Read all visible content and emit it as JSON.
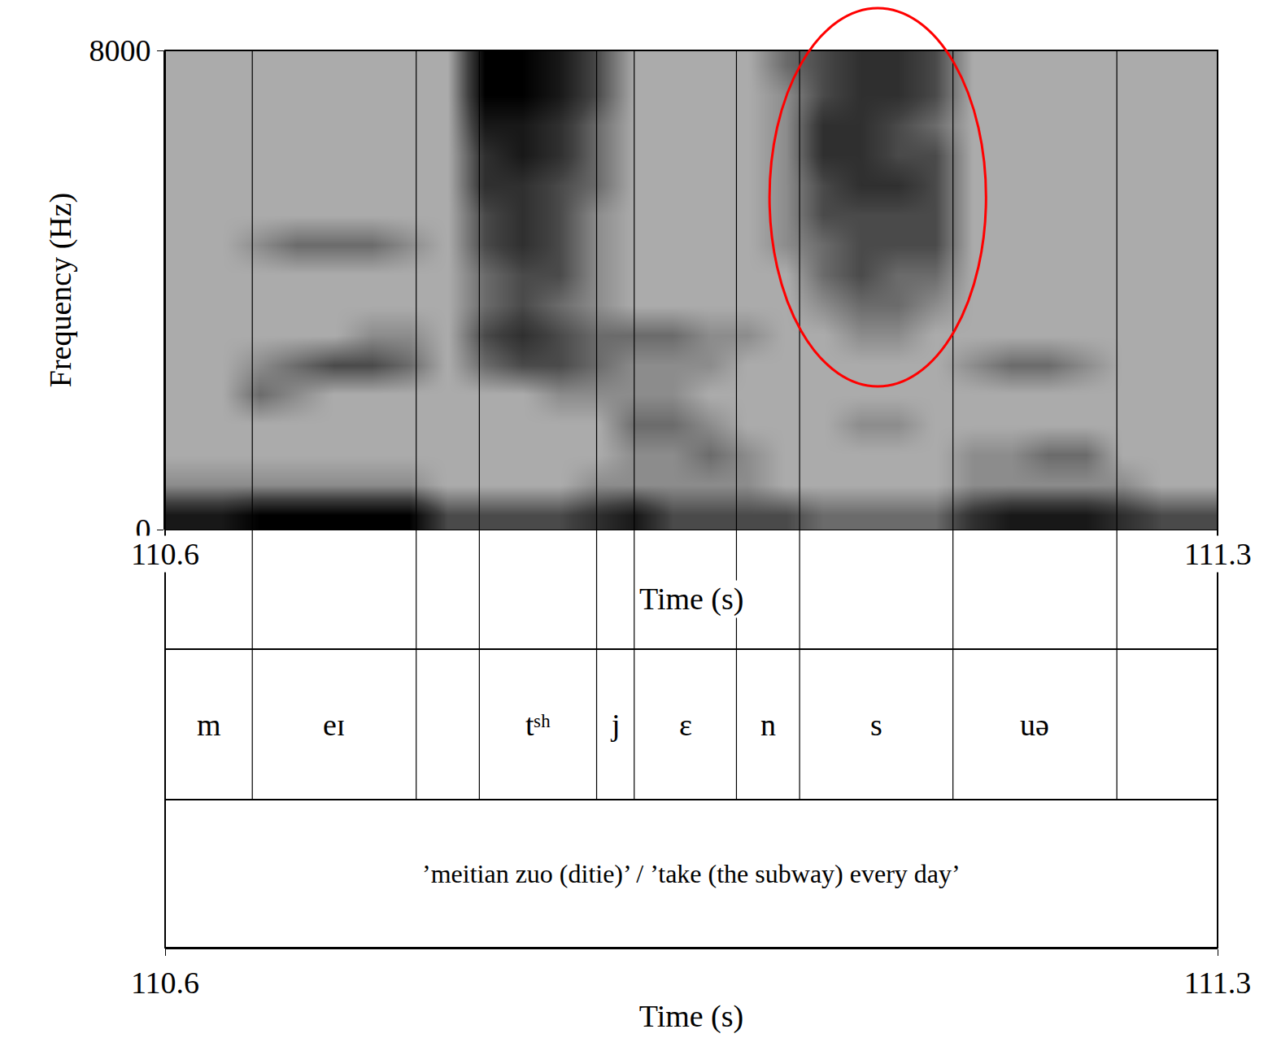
{
  "chart_data": {
    "type": "spectrogram",
    "xlabel": "Time (s)",
    "ylabel": "Frequency (Hz)",
    "xlim": [
      110.6,
      111.3
    ],
    "xticks": [
      110.6,
      111.3
    ],
    "ylim": [
      0,
      8000
    ],
    "yticks": [
      0,
      8000
    ],
    "grid": false,
    "time": [
      110.6125,
      110.6375,
      110.6625,
      110.6875,
      110.7125,
      110.7375,
      110.7625,
      110.7875,
      110.8125,
      110.8375,
      110.8625,
      110.8875,
      110.9125,
      110.9375,
      110.9625,
      110.9875,
      111.0125,
      111.0375,
      111.0625,
      111.0875,
      111.1125,
      111.1375,
      111.1625,
      111.1875,
      111.2125,
      111.2375,
      111.2625,
      111.2875
    ],
    "frequency": [
      250,
      750,
      1250,
      1750,
      2250,
      2750,
      3250,
      3750,
      4250,
      4750,
      5250,
      5750,
      6250,
      6750,
      7250,
      7750
    ],
    "zlim": [
      0,
      9
    ],
    "intensity": [
      [
        8,
        4,
        3,
        3,
        3,
        3,
        3,
        3,
        3,
        3,
        3,
        3,
        3,
        3,
        3,
        3
      ],
      [
        8,
        4,
        3,
        3,
        3,
        3,
        3,
        3,
        3,
        3,
        3,
        3,
        3,
        3,
        3,
        3
      ],
      [
        9,
        4,
        3,
        3,
        5,
        4,
        3,
        3,
        3,
        4,
        3,
        3,
        3,
        3,
        3,
        3
      ],
      [
        9,
        4,
        3,
        3,
        4,
        5,
        3,
        3,
        3,
        5,
        3,
        3,
        3,
        3,
        3,
        3
      ],
      [
        9,
        4,
        3,
        3,
        3,
        6,
        3,
        3,
        3,
        5,
        3,
        3,
        3,
        3,
        3,
        3
      ],
      [
        9,
        4,
        3,
        3,
        3,
        6,
        4,
        3,
        3,
        5,
        3,
        3,
        3,
        3,
        3,
        3
      ],
      [
        9,
        4,
        3,
        3,
        3,
        5,
        4,
        3,
        3,
        4,
        3,
        3,
        3,
        3,
        3,
        3
      ],
      [
        6,
        3,
        3,
        3,
        3,
        3,
        3,
        3,
        3,
        3,
        3,
        3,
        3,
        3,
        3,
        3
      ],
      [
        6,
        3,
        3,
        3,
        3,
        5,
        6,
        5,
        5,
        6,
        6,
        7,
        7,
        8,
        9,
        9
      ],
      [
        6,
        3,
        3,
        3,
        3,
        6,
        7,
        6,
        6,
        7,
        7,
        7,
        8,
        8,
        9,
        9
      ],
      [
        6,
        3,
        3,
        3,
        4,
        6,
        6,
        5,
        6,
        6,
        6,
        6,
        7,
        7,
        8,
        8
      ],
      [
        7,
        4,
        3,
        3,
        4,
        5,
        5,
        4,
        4,
        4,
        4,
        5,
        5,
        5,
        6,
        6
      ],
      [
        8,
        4,
        4,
        5,
        4,
        4,
        5,
        3,
        3,
        3,
        3,
        3,
        3,
        3,
        3,
        3
      ],
      [
        6,
        4,
        4,
        5,
        4,
        4,
        5,
        3,
        3,
        3,
        3,
        3,
        3,
        3,
        3,
        3
      ],
      [
        6,
        4,
        5,
        4,
        3,
        4,
        4,
        3,
        3,
        3,
        3,
        3,
        3,
        3,
        3,
        3
      ],
      [
        6,
        4,
        4,
        3,
        3,
        3,
        4,
        3,
        3,
        3,
        3,
        3,
        3,
        3,
        3,
        3
      ],
      [
        6,
        3,
        3,
        3,
        3,
        3,
        3,
        3,
        3,
        4,
        4,
        4,
        4,
        4,
        4,
        5
      ],
      [
        5,
        3,
        3,
        3,
        3,
        3,
        3,
        4,
        5,
        5,
        6,
        6,
        7,
        7,
        6,
        6
      ],
      [
        5,
        3,
        3,
        4,
        3,
        3,
        4,
        5,
        6,
        6,
        6,
        7,
        7,
        7,
        7,
        7
      ],
      [
        5,
        3,
        3,
        4,
        3,
        3,
        4,
        5,
        5,
        6,
        6,
        7,
        6,
        6,
        7,
        7
      ],
      [
        5,
        3,
        3,
        3,
        3,
        3,
        3,
        4,
        5,
        6,
        6,
        6,
        6,
        5,
        6,
        6
      ],
      [
        7,
        4,
        4,
        3,
        3,
        4,
        3,
        3,
        3,
        3,
        3,
        3,
        3,
        3,
        3,
        3
      ],
      [
        8,
        4,
        4,
        3,
        3,
        5,
        3,
        3,
        3,
        3,
        3,
        3,
        3,
        3,
        3,
        3
      ],
      [
        8,
        4,
        5,
        3,
        3,
        5,
        3,
        3,
        3,
        3,
        3,
        3,
        3,
        3,
        3,
        3
      ],
      [
        8,
        4,
        5,
        3,
        3,
        4,
        3,
        3,
        3,
        3,
        3,
        3,
        3,
        3,
        3,
        3
      ],
      [
        7,
        4,
        3,
        3,
        3,
        3,
        3,
        3,
        3,
        3,
        3,
        3,
        3,
        3,
        3,
        3
      ],
      [
        6,
        3,
        3,
        3,
        3,
        3,
        3,
        3,
        3,
        3,
        3,
        3,
        3,
        3,
        3,
        3
      ],
      [
        6,
        3,
        3,
        3,
        3,
        3,
        3,
        3,
        3,
        3,
        3,
        3,
        3,
        3,
        3,
        3
      ]
    ],
    "boundaries": [
      110.658,
      110.767,
      110.809,
      110.887,
      110.912,
      110.98,
      111.022,
      111.124,
      111.233
    ],
    "segments": [
      "m",
      "eɪ",
      null,
      "tˢʰ",
      "j",
      "ɛ",
      "n",
      "s",
      "uə",
      null
    ],
    "gloss": "’meitian zuo (ditie)’ / ’take (the subway) every day’",
    "annotations": [
      {
        "shape": "ellipse",
        "color": "red",
        "x0": 111.002,
        "x1": 111.146,
        "y0": 2390,
        "y1": 8706
      }
    ]
  }
}
